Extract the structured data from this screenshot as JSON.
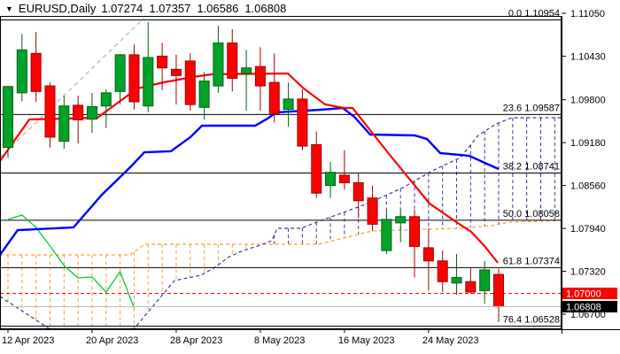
{
  "header": {
    "collapse_icon": "▼",
    "symbol_period": "EURUSD,Daily",
    "open": "1.07274",
    "high": "1.07357",
    "low": "1.06586",
    "close": "1.06808"
  },
  "chart_data": {
    "type": "candlestick",
    "title": "EURUSD,Daily",
    "symbol": "EURUSD",
    "timeframe": "Daily",
    "grid": "off",
    "y_axis": {
      "side": "right",
      "top_tick_price": 1.1105,
      "bottom_tick_price": 1.067,
      "tick_prices": [
        1.1105,
        1.1043,
        1.098,
        1.0918,
        1.0856,
        1.0794,
        1.0732,
        1.067
      ],
      "tick_labels": [
        "1.11050",
        "1.10430",
        "1.09800",
        "1.09180",
        "1.08560",
        "1.07940",
        "1.07320",
        "1.06700"
      ]
    },
    "x_axis": {
      "tick_labels": [
        "12 Apr 2023",
        "20 Apr 2023",
        "28 Apr 2023",
        "8 May 2023",
        "16 May 2023",
        "24 May 2023"
      ],
      "tick_bar_indices": [
        0,
        6,
        12,
        18,
        24,
        30
      ]
    },
    "candles": [
      {
        "date": "12 Apr",
        "o": 1.0911,
        "h": 1.1,
        "l": 1.0896,
        "c": 1.0999
      },
      {
        "date": "13 Apr",
        "o": 1.099,
        "h": 1.1075,
        "l": 1.0978,
        "c": 1.1052
      },
      {
        "date": "14 Apr",
        "o": 1.1047,
        "h": 1.1078,
        "l": 1.0977,
        "c": 1.0992
      },
      {
        "date": "17 Apr",
        "o": 1.1,
        "h": 1.1005,
        "l": 1.0911,
        "c": 1.0926
      },
      {
        "date": "18 Apr",
        "o": 1.092,
        "h": 1.0986,
        "l": 1.0909,
        "c": 1.0971
      },
      {
        "date": "19 Apr",
        "o": 1.0972,
        "h": 1.0986,
        "l": 1.0917,
        "c": 1.0951
      },
      {
        "date": "20 Apr",
        "o": 1.0952,
        "h": 1.099,
        "l": 1.0932,
        "c": 1.097
      },
      {
        "date": "21 Apr",
        "o": 1.0971,
        "h": 1.0995,
        "l": 1.0939,
        "c": 1.099
      },
      {
        "date": "24 Apr",
        "o": 1.0992,
        "h": 1.1046,
        "l": 1.0973,
        "c": 1.1045
      },
      {
        "date": "25 Apr",
        "o": 1.1045,
        "h": 1.106,
        "l": 1.0966,
        "c": 1.0977
      },
      {
        "date": "26 Apr",
        "o": 1.0971,
        "h": 1.1092,
        "l": 1.0962,
        "c": 1.1041
      },
      {
        "date": "27 Apr",
        "o": 1.1043,
        "h": 1.1062,
        "l": 1.0994,
        "c": 1.1026
      },
      {
        "date": "28 Apr",
        "o": 1.1024,
        "h": 1.1045,
        "l": 1.0973,
        "c": 1.1015
      },
      {
        "date": "1 May",
        "o": 1.1036,
        "h": 1.1047,
        "l": 1.0964,
        "c": 1.0973
      },
      {
        "date": "2 May",
        "o": 1.0969,
        "h": 1.102,
        "l": 1.0951,
        "c": 1.1007
      },
      {
        "date": "3 May",
        "o": 1.1,
        "h": 1.1087,
        "l": 1.099,
        "c": 1.1062
      },
      {
        "date": "4 May",
        "o": 1.1062,
        "h": 1.1082,
        "l": 1.0992,
        "c": 1.1011
      },
      {
        "date": "5 May",
        "o": 1.1018,
        "h": 1.1052,
        "l": 1.0964,
        "c": 1.1026
      },
      {
        "date": "8 May",
        "o": 1.1028,
        "h": 1.1056,
        "l": 1.0964,
        "c": 1.1
      },
      {
        "date": "9 May",
        "o": 1.1005,
        "h": 1.1047,
        "l": 1.0947,
        "c": 1.096
      },
      {
        "date": "10 May",
        "o": 1.0966,
        "h": 1.1005,
        "l": 1.0941,
        "c": 1.0981
      },
      {
        "date": "11 May",
        "o": 1.0981,
        "h": 1.0995,
        "l": 1.0907,
        "c": 1.0913
      },
      {
        "date": "12 May",
        "o": 1.0915,
        "h": 1.0934,
        "l": 1.0838,
        "c": 1.0845
      },
      {
        "date": "15 May",
        "o": 1.0856,
        "h": 1.089,
        "l": 1.0838,
        "c": 1.0875
      },
      {
        "date": "16 May",
        "o": 1.0871,
        "h": 1.0907,
        "l": 1.085,
        "c": 1.086
      },
      {
        "date": "17 May",
        "o": 1.086,
        "h": 1.0875,
        "l": 1.0809,
        "c": 1.0834
      },
      {
        "date": "18 May",
        "o": 1.0838,
        "h": 1.0856,
        "l": 1.079,
        "c": 1.08
      },
      {
        "date": "19 May",
        "o": 1.0762,
        "h": 1.0821,
        "l": 1.0757,
        "c": 1.0807
      },
      {
        "date": "22 May",
        "o": 1.0802,
        "h": 1.0821,
        "l": 1.0774,
        "c": 1.0811
      },
      {
        "date": "23 May",
        "o": 1.0811,
        "h": 1.0821,
        "l": 1.0723,
        "c": 1.0768
      },
      {
        "date": "24 May",
        "o": 1.0766,
        "h": 1.0794,
        "l": 1.0704,
        "c": 1.0747
      },
      {
        "date": "25 May",
        "o": 1.0747,
        "h": 1.0762,
        "l": 1.0702,
        "c": 1.0717
      },
      {
        "date": "26 May",
        "o": 1.0715,
        "h": 1.0757,
        "l": 1.0698,
        "c": 1.0723
      },
      {
        "date": "29 May",
        "o": 1.0717,
        "h": 1.0738,
        "l": 1.07,
        "c": 1.0702
      },
      {
        "date": "30 May",
        "o": 1.0704,
        "h": 1.0747,
        "l": 1.0685,
        "c": 1.0734
      },
      {
        "date": "31 May",
        "o": 1.07274,
        "h": 1.07357,
        "l": 1.06586,
        "c": 1.06808
      }
    ],
    "indicators": {
      "ichimoku": {
        "tenkan_sen": {
          "color": "#FF0000",
          "points": [
            [
              -0.57,
              1.08913
            ],
            [
              1.52,
              1.09515
            ],
            [
              6.38,
              1.0954
            ],
            [
              9.22,
              1.09963
            ],
            [
              11.12,
              1.10052
            ],
            [
              13.2,
              1.10129
            ],
            [
              14.59,
              1.10168
            ],
            [
              19.96,
              1.1018
            ],
            [
              21.1,
              1.09963
            ],
            [
              22.62,
              1.09732
            ],
            [
              23.94,
              1.09681
            ],
            [
              24.58,
              1.09681
            ],
            [
              27.23,
              1.09003
            ],
            [
              30.07,
              1.08299
            ],
            [
              32.09,
              1.08018
            ],
            [
              33.04,
              1.0789
            ],
            [
              33.99,
              1.07685
            ],
            [
              34.94,
              1.07442
            ]
          ]
        },
        "kijun_sen": {
          "color": "#0000FF",
          "points": [
            [
              -0.57,
              1.07557
            ],
            [
              0.69,
              1.07915
            ],
            [
              4.67,
              1.07954
            ],
            [
              6.7,
              1.08427
            ],
            [
              8.78,
              1.08837
            ],
            [
              9.73,
              1.09041
            ],
            [
              11.62,
              1.09054
            ],
            [
              13.01,
              1.09259
            ],
            [
              13.84,
              1.09425
            ],
            [
              17.63,
              1.09425
            ],
            [
              18.51,
              1.09527
            ],
            [
              19.14,
              1.09617
            ],
            [
              22.3,
              1.09655
            ],
            [
              23.88,
              1.09681
            ],
            [
              24.7,
              1.09553
            ],
            [
              25.84,
              1.09297
            ],
            [
              29.0,
              1.09284
            ],
            [
              29.88,
              1.09233
            ],
            [
              30.83,
              1.09029
            ],
            [
              32.91,
              1.0899
            ],
            [
              33.86,
              1.08901
            ],
            [
              35.0,
              1.08798
            ]
          ]
        },
        "chikou_span": {
          "color": "#00CC33",
          "start_index": 0,
          "values": [
            1.08069,
            1.08133,
            1.07954,
            1.07685,
            1.07404,
            1.07225,
            1.07237,
            1.0702,
            1.07314,
            1.06789
          ]
        },
        "senkou_span_a": {
          "color": "#FF9F2E",
          "style": "dashed",
          "points": [
            [
              -0.57,
              1.07557
            ],
            [
              8.72,
              1.07557
            ],
            [
              9.73,
              1.07711
            ],
            [
              22.17,
              1.07711
            ],
            [
              25.96,
              1.07903
            ],
            [
              32.28,
              1.07941
            ],
            [
              34.49,
              1.07979
            ],
            [
              35.76,
              1.0803
            ],
            [
              39.8,
              1.08056
            ]
          ]
        },
        "senkou_span_b": {
          "color": "#3B3B9E",
          "style": "dashed",
          "points": [
            [
              -0.57,
              1.06956
            ],
            [
              3.1,
              1.0647
            ],
            [
              8.91,
              1.0647
            ],
            [
              11.88,
              1.07186
            ],
            [
              13.77,
              1.07263
            ],
            [
              14.78,
              1.07378
            ],
            [
              15.79,
              1.07532
            ],
            [
              16.8,
              1.07621
            ],
            [
              17.81,
              1.07685
            ],
            [
              18.82,
              1.07762
            ],
            [
              19.2,
              1.07941
            ],
            [
              20.91,
              1.07941
            ],
            [
              22.17,
              1.08043
            ],
            [
              23.94,
              1.08171
            ],
            [
              25.96,
              1.08325
            ],
            [
              28.17,
              1.0853
            ],
            [
              30.26,
              1.08773
            ],
            [
              32.28,
              1.08965
            ],
            [
              33.54,
              1.09284
            ],
            [
              34.81,
              1.09451
            ],
            [
              35.94,
              1.0954
            ],
            [
              39.8,
              1.0954
            ]
          ]
        }
      },
      "fibonacci": {
        "color": "#000000",
        "levels": [
          {
            "ratio": "0.0",
            "price": 1.10954,
            "label": "0.0 1.10954"
          },
          {
            "ratio": "23.6",
            "price": 1.09587,
            "label": "23.6 1.09587"
          },
          {
            "ratio": "38.2",
            "price": 1.08741,
            "label": "38.2 1.08741"
          },
          {
            "ratio": "50.0",
            "price": 1.08058,
            "label": "50.0 1.08058"
          },
          {
            "ratio": "61.8",
            "price": 1.07374,
            "label": "61.8 1.07374"
          },
          {
            "ratio": "76.4",
            "price": 1.06528,
            "label": "76.4 1.06528"
          }
        ]
      },
      "trendline": {
        "color": "#A6A6A6",
        "style": "dashed",
        "from": [
          -0.57,
          1.08965
        ],
        "to": [
          9.73,
          1.10986
        ]
      },
      "price_lines": [
        {
          "label": "1.07000",
          "price": 1.07,
          "style": "dashed",
          "line_color": "#FF0000",
          "box_color": "#FF0000",
          "text_color": "#FFFFFF"
        },
        {
          "label": "1.06808",
          "price": 1.06808,
          "style": "solid",
          "line_color": "#BFBFBF",
          "box_color": "#000000",
          "text_color": "#FFFFFF"
        }
      ]
    },
    "colors": {
      "background": "#FFFFFF",
      "border": "#000000",
      "text": "#000000",
      "bull_body": "#00A227",
      "bull_outline": "#005F13",
      "bear_body": "#FE0000",
      "bear_outline": "#9E0000"
    }
  }
}
